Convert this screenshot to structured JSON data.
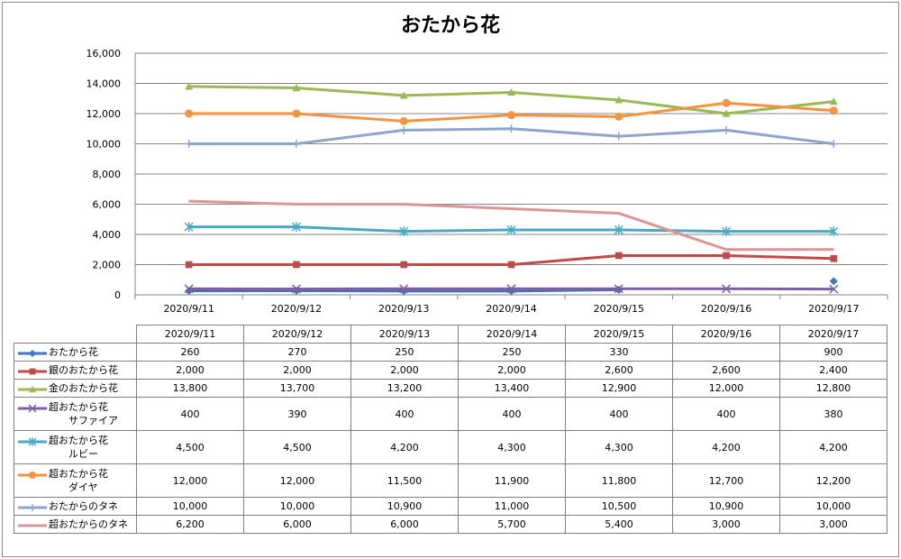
{
  "chart_data": {
    "type": "line",
    "title": "おたから花",
    "categories": [
      "2020/9/11",
      "2020/9/12",
      "2020/9/13",
      "2020/9/14",
      "2020/9/15",
      "2020/9/16",
      "2020/9/17"
    ],
    "ylim": [
      0,
      16000
    ],
    "yticks": [
      "0",
      "2,000",
      "4,000",
      "6,000",
      "8,000",
      "10,000",
      "12,000",
      "14,000",
      "16,000"
    ],
    "grid": true,
    "legend": "data-table",
    "series": [
      {
        "name": "おたから花",
        "name_lines": [
          "おたから花"
        ],
        "color": "#4472c4",
        "marker": "diamond",
        "values": [
          260,
          270,
          250,
          250,
          330,
          null,
          900
        ],
        "labels": [
          "260",
          "270",
          "250",
          "250",
          "330",
          "",
          "900"
        ]
      },
      {
        "name": "銀のおたから花",
        "name_lines": [
          "銀のおたから花"
        ],
        "color": "#be4b48",
        "marker": "square",
        "values": [
          2000,
          2000,
          2000,
          2000,
          2600,
          2600,
          2400
        ],
        "labels": [
          "2,000",
          "2,000",
          "2,000",
          "2,000",
          "2,600",
          "2,600",
          "2,400"
        ]
      },
      {
        "name": "金のおたから花",
        "name_lines": [
          "金のおたから花"
        ],
        "color": "#98b954",
        "marker": "triangle",
        "values": [
          13800,
          13700,
          13200,
          13400,
          12900,
          12000,
          12800
        ],
        "labels": [
          "13,800",
          "13,700",
          "13,200",
          "13,400",
          "12,900",
          "12,000",
          "12,800"
        ]
      },
      {
        "name": "超おたから花 サファイア",
        "name_lines": [
          "超おたから花",
          "サファイア"
        ],
        "color": "#7d60a0",
        "marker": "x",
        "values": [
          400,
          390,
          400,
          400,
          400,
          400,
          380
        ],
        "labels": [
          "400",
          "390",
          "400",
          "400",
          "400",
          "400",
          "380"
        ]
      },
      {
        "name": "超おたから花 ルビー",
        "name_lines": [
          "超おたから花",
          "ルビー"
        ],
        "color": "#46aac5",
        "marker": "star",
        "values": [
          4500,
          4500,
          4200,
          4300,
          4300,
          4200,
          4200
        ],
        "labels": [
          "4,500",
          "4,500",
          "4,200",
          "4,300",
          "4,300",
          "4,200",
          "4,200"
        ]
      },
      {
        "name": "超おたから花 ダイヤ",
        "name_lines": [
          "超おたから花",
          "ダイヤ"
        ],
        "color": "#f69240",
        "marker": "circle",
        "values": [
          12000,
          12000,
          11500,
          11900,
          11800,
          12700,
          12200
        ],
        "labels": [
          "12,000",
          "12,000",
          "11,500",
          "11,900",
          "11,800",
          "12,700",
          "12,200"
        ]
      },
      {
        "name": "おたからのタネ",
        "name_lines": [
          "おたからのタネ"
        ],
        "color": "#8ea5cb",
        "marker": "plus",
        "values": [
          10000,
          10000,
          10900,
          11000,
          10500,
          10900,
          10000
        ],
        "labels": [
          "10,000",
          "10,000",
          "10,900",
          "11,000",
          "10,500",
          "10,900",
          "10,000"
        ]
      },
      {
        "name": "超おたからのタネ",
        "name_lines": [
          "超おたからのタネ"
        ],
        "color": "#d99694",
        "marker": "none",
        "values": [
          6200,
          6000,
          6000,
          5700,
          5400,
          3000,
          3000
        ],
        "labels": [
          "6,200",
          "6,000",
          "6,000",
          "5,700",
          "5,400",
          "3,000",
          "3,000"
        ]
      }
    ]
  }
}
